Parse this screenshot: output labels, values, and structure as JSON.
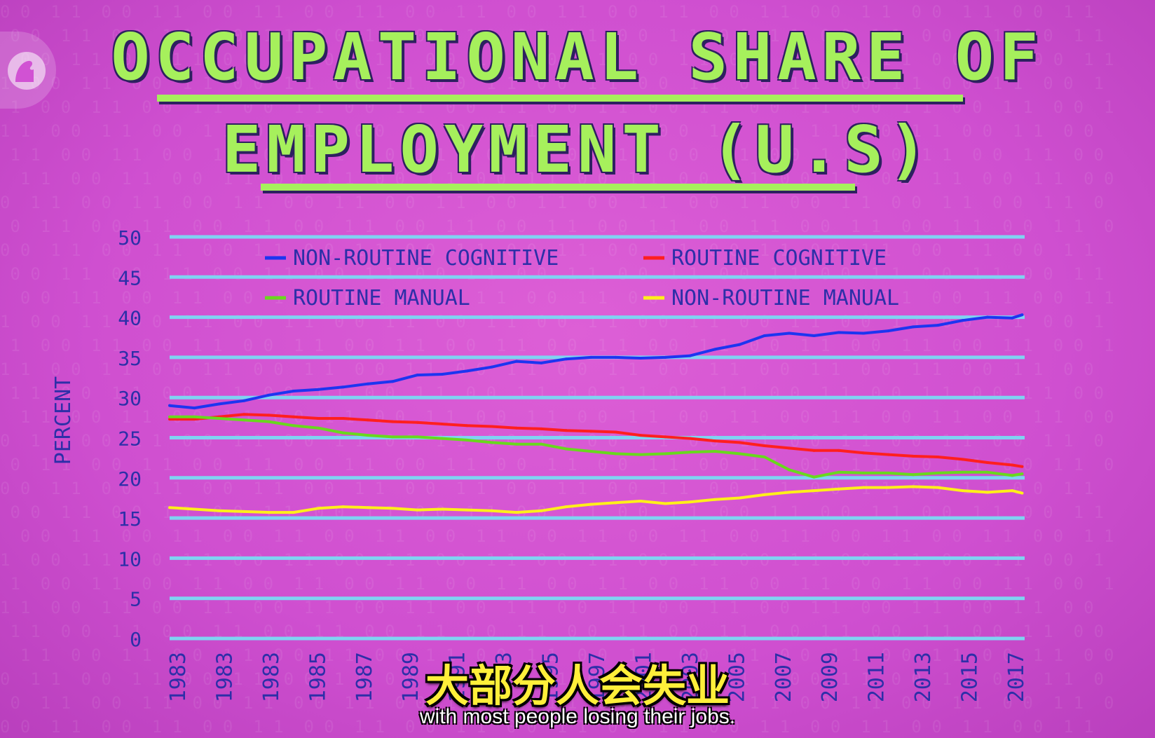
{
  "title_line1": "OCCUPATIONAL SHARE OF",
  "title_line2": "EMPLOYMENT (U.S)",
  "subtitle_zh": "大部分人会失业",
  "subtitle_en": "with most people losing their jobs.",
  "colors": {
    "background": "#d152d3",
    "title": "#a6f05c",
    "gridline": "#7fd3f2",
    "axis_text": "#2d2fa8",
    "non_routine_cognitive": "#1d35f0",
    "routine_cognitive": "#ff1f1f",
    "routine_manual": "#69d81e",
    "non_routine_manual": "#ffef1a"
  },
  "chart_data": {
    "type": "line",
    "title": "OCCUPATIONAL SHARE OF EMPLOYMENT (U.S)",
    "xlabel": "",
    "ylabel": "PERCENT",
    "ylim": [
      0,
      50
    ],
    "yticks": [
      "50",
      "45",
      "40",
      "35",
      "30",
      "25",
      "20",
      "15",
      "10",
      "5",
      "0"
    ],
    "xticks": [
      "1983",
      "1983",
      "1983",
      "1985",
      "1987",
      "1989",
      "1991",
      "1993",
      "1995",
      "1997",
      "2001",
      "2003",
      "2005",
      "2007",
      "2009",
      "2011",
      "2013",
      "2015",
      "2017"
    ],
    "xlim": [
      1983,
      2017.5
    ],
    "grid": true,
    "legend_placement": "top",
    "series": [
      {
        "name": "NON-ROUTINE COGNITIVE",
        "color_key": "non_routine_cognitive",
        "x": [
          1983,
          1984,
          1985,
          1986,
          1987,
          1988,
          1989,
          1990,
          1991,
          1992,
          1993,
          1994,
          1995,
          1996,
          1997,
          1998,
          1999,
          2000,
          2001,
          2002,
          2003,
          2004,
          2005,
          2006,
          2007,
          2008,
          2009,
          2010,
          2011,
          2012,
          2013,
          2014,
          2015,
          2016,
          2017,
          2017.4
        ],
        "values": [
          29.0,
          28.7,
          29.2,
          29.6,
          30.3,
          30.8,
          31.0,
          31.3,
          31.7,
          32.0,
          32.8,
          32.9,
          33.3,
          33.8,
          34.5,
          34.3,
          34.8,
          35.0,
          35.0,
          34.9,
          35.0,
          35.2,
          36.0,
          36.6,
          37.7,
          38.0,
          37.7,
          38.1,
          38.0,
          38.3,
          38.8,
          39.0,
          39.6,
          40.0,
          39.9,
          40.3
        ]
      },
      {
        "name": "ROUTINE COGNITIVE",
        "color_key": "routine_cognitive",
        "x": [
          1983,
          1984,
          1985,
          1986,
          1987,
          1988,
          1989,
          1990,
          1991,
          1992,
          1993,
          1994,
          1995,
          1996,
          1997,
          1998,
          1999,
          2000,
          2001,
          2002,
          2003,
          2004,
          2005,
          2006,
          2007,
          2008,
          2009,
          2010,
          2011,
          2012,
          2013,
          2014,
          2015,
          2016,
          2017,
          2017.4
        ],
        "values": [
          27.3,
          27.3,
          27.6,
          27.9,
          27.8,
          27.6,
          27.4,
          27.4,
          27.2,
          27.0,
          26.9,
          26.7,
          26.5,
          26.4,
          26.2,
          26.1,
          25.9,
          25.8,
          25.7,
          25.3,
          25.1,
          24.9,
          24.6,
          24.4,
          24.0,
          23.7,
          23.4,
          23.4,
          23.1,
          22.9,
          22.7,
          22.6,
          22.3,
          21.9,
          21.6,
          21.4
        ]
      },
      {
        "name": "ROUTINE MANUAL",
        "color_key": "routine_manual",
        "x": [
          1983,
          1984,
          1985,
          1986,
          1987,
          1988,
          1989,
          1990,
          1991,
          1992,
          1993,
          1994,
          1995,
          1996,
          1997,
          1998,
          1999,
          2000,
          2001,
          2002,
          2003,
          2004,
          2005,
          2006,
          2007,
          2008,
          2009,
          2010,
          2011,
          2012,
          2013,
          2014,
          2015,
          2016,
          2017,
          2017.4
        ],
        "values": [
          27.6,
          27.6,
          27.4,
          27.2,
          27.0,
          26.5,
          26.2,
          25.6,
          25.3,
          25.1,
          25.1,
          24.9,
          24.7,
          24.4,
          24.2,
          24.2,
          23.6,
          23.3,
          23.0,
          22.9,
          23.0,
          23.2,
          23.3,
          23.0,
          22.6,
          21.0,
          20.1,
          20.7,
          20.6,
          20.6,
          20.4,
          20.6,
          20.7,
          20.7,
          20.3,
          20.5
        ]
      },
      {
        "name": "NON-ROUTINE MANUAL",
        "color_key": "non_routine_manual",
        "x": [
          1983,
          1984,
          1985,
          1986,
          1987,
          1988,
          1989,
          1990,
          1991,
          1992,
          1993,
          1994,
          1995,
          1996,
          1997,
          1998,
          1999,
          2000,
          2001,
          2002,
          2003,
          2004,
          2005,
          2006,
          2007,
          2008,
          2009,
          2010,
          2011,
          2012,
          2013,
          2014,
          2015,
          2016,
          2017,
          2017.4
        ],
        "values": [
          16.3,
          16.1,
          15.9,
          15.8,
          15.7,
          15.7,
          16.2,
          16.4,
          16.3,
          16.2,
          16.0,
          16.1,
          16.0,
          15.9,
          15.7,
          15.9,
          16.4,
          16.7,
          16.9,
          17.1,
          16.8,
          17.0,
          17.3,
          17.5,
          17.9,
          18.2,
          18.4,
          18.6,
          18.8,
          18.8,
          18.9,
          18.8,
          18.4,
          18.2,
          18.4,
          18.1
        ]
      }
    ]
  }
}
